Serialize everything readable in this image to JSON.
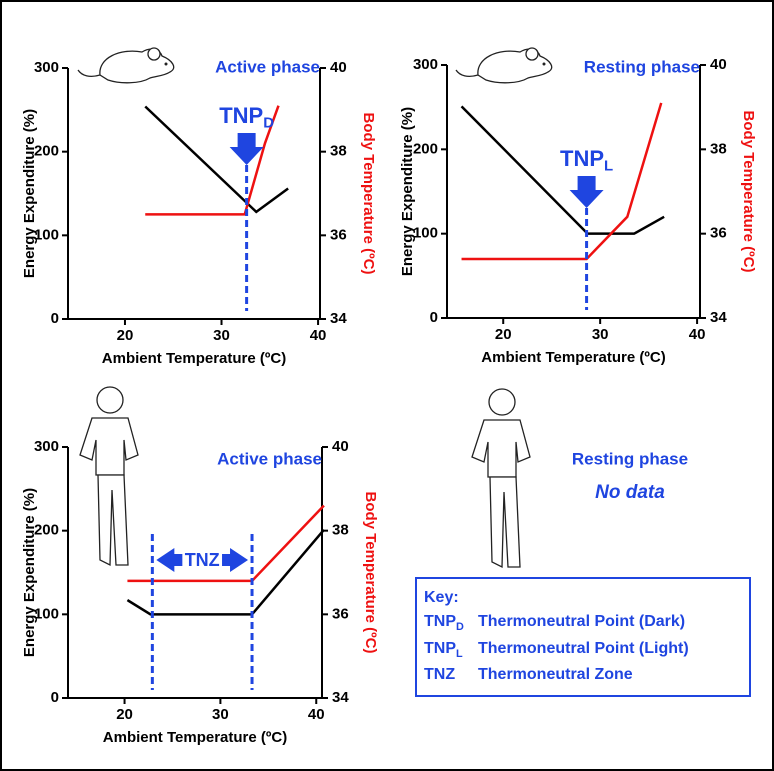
{
  "chart_data": [
    {
      "type": "line",
      "title": "Active phase",
      "xlabel": "Ambient Temperature (ºC)",
      "ylabel": "Energy Expenditure (%)",
      "y2label": "Body Temperature (ºC)",
      "xlim": [
        14.1,
        40.2
      ],
      "xticks": [
        20,
        30,
        40
      ],
      "ylim": [
        0,
        300
      ],
      "yticks": [
        0,
        100,
        200,
        300
      ],
      "y2lim": [
        34,
        40
      ],
      "y2ticks": [
        34,
        36,
        38,
        40
      ],
      "series": [
        {
          "color": "#000000",
          "x": [
            22.1,
            33.6,
            36.9
          ],
          "values": [
            254,
            128,
            156
          ]
        },
        {
          "color": "#ee1111",
          "axis": "y2",
          "x": [
            22.1,
            32.4,
            34.5,
            35.9
          ],
          "values": [
            36.5,
            36.5,
            38.2,
            39.1
          ]
        }
      ],
      "annotation": {
        "label": "TNP",
        "sub": "D",
        "x": [
          32.6
        ]
      }
    },
    {
      "type": "line",
      "title": "Resting phase",
      "xlabel": "Ambient Temperature (ºC)",
      "ylabel": "Energy Expenditure (%)",
      "y2label": "Body Temperature (ºC)",
      "xlim": [
        14.2,
        40.3
      ],
      "xticks": [
        20,
        30,
        40
      ],
      "ylim": [
        0,
        300
      ],
      "yticks": [
        0,
        100,
        200,
        300
      ],
      "y2lim": [
        34,
        40
      ],
      "y2ticks": [
        34,
        36,
        38,
        40
      ],
      "series": [
        {
          "color": "#000000",
          "x": [
            15.7,
            28.7,
            33.5,
            36.6
          ],
          "values": [
            251,
            100,
            100,
            120
          ]
        },
        {
          "color": "#ee1111",
          "axis": "y2",
          "x": [
            15.7,
            28.6,
            32.8,
            36.3
          ],
          "values": [
            35.4,
            35.4,
            36.4,
            39.1
          ]
        }
      ],
      "annotation": {
        "label": "TNP",
        "sub": "L",
        "x": [
          28.6
        ]
      }
    },
    {
      "type": "line",
      "title": "Active phase",
      "xlabel": "Ambient Temperature (ºC)",
      "ylabel": "Energy Expenditure (%)",
      "y2label": "Body Temperature (ºC)",
      "xlim": [
        14.1,
        40.6
      ],
      "xticks": [
        20,
        30,
        40
      ],
      "ylim": [
        0,
        300
      ],
      "yticks": [
        0,
        100,
        200,
        300
      ],
      "y2lim": [
        34,
        40
      ],
      "y2ticks": [
        34,
        36,
        38,
        40
      ],
      "series": [
        {
          "color": "#000000",
          "x": [
            20.3,
            22.7,
            33.3,
            40.8
          ],
          "values": [
            117,
            100,
            100,
            201
          ]
        },
        {
          "color": "#ee1111",
          "axis": "y2",
          "x": [
            20.3,
            33.3,
            40.8
          ],
          "values": [
            36.8,
            36.8,
            38.6
          ]
        }
      ],
      "annotation": {
        "label": "TNZ",
        "x": [
          22.9,
          33.3
        ]
      }
    }
  ],
  "resting_panel": {
    "title": "Resting phase",
    "note": "No data"
  },
  "key": {
    "title": "Key:",
    "items": [
      {
        "term": "TNP",
        "sub": "D",
        "text": "Thermoneutral Point (Dark)"
      },
      {
        "term": "TNP",
        "sub": "L",
        "text": "Thermoneutral Point (Light)"
      },
      {
        "term": "TNZ",
        "text": "Thermoneutral Zone"
      }
    ]
  }
}
